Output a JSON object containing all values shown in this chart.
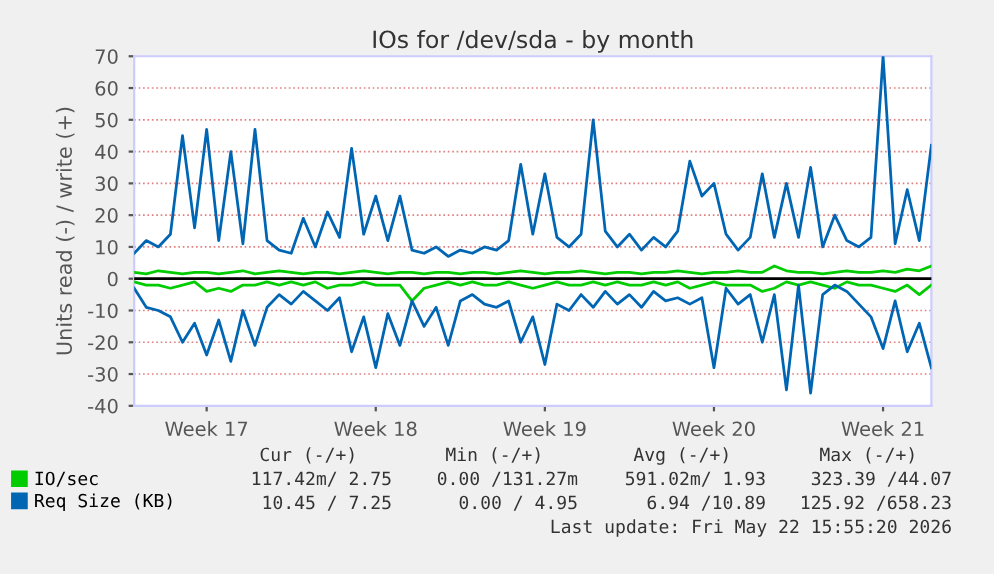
{
  "chart_data": {
    "type": "line",
    "title": "IOs for /dev/sda - by month",
    "ylabel": "Units read (-) / write (+)",
    "categories": [
      null,
      null,
      null,
      null,
      null,
      null,
      "Week 17",
      null,
      null,
      null,
      null,
      null,
      null,
      null,
      null,
      null,
      null,
      null,
      null,
      null,
      "Week 18",
      null,
      null,
      null,
      null,
      null,
      null,
      null,
      null,
      null,
      null,
      null,
      null,
      null,
      "Week 19",
      null,
      null,
      null,
      null,
      null,
      null,
      null,
      null,
      null,
      null,
      null,
      null,
      null,
      "Week 20",
      null,
      null,
      null,
      null,
      null,
      null,
      null,
      null,
      null,
      null,
      null,
      null,
      null,
      "Week 21",
      null,
      null,
      null,
      null
    ],
    "ylim": [
      -40,
      70
    ],
    "yticks": [
      -40,
      -30,
      -20,
      -10,
      0,
      10,
      20,
      30,
      40,
      50,
      60,
      70
    ],
    "grid": "y",
    "legend": "bottom",
    "line_style": "solid",
    "ref_lines": [
      {
        "axis": "y",
        "value": 0,
        "color": "#000000"
      }
    ],
    "series": [
      {
        "color": "#00cc00",
        "values": [
          -1,
          -2,
          -2,
          -3,
          -2,
          -1,
          -4,
          -3,
          -4,
          -2,
          -2,
          -1,
          -2,
          -1,
          -2,
          -1,
          -3,
          -2,
          -2,
          -1,
          -2,
          -2,
          -2,
          -7,
          -3,
          -2,
          -1,
          -2,
          -1,
          -2,
          -2,
          -1,
          -2,
          -3,
          -2,
          -1,
          -2,
          -2,
          -1,
          -2,
          -1,
          -2,
          -2,
          -1,
          -2,
          -1,
          -3,
          -2,
          -1,
          -2,
          -2,
          -2,
          -4,
          -3,
          -1,
          -2,
          -1,
          -2,
          -3,
          -1,
          -2,
          -2,
          -3,
          -4,
          -2,
          -5,
          -2
        ]
      },
      {
        "color": "#0066b3",
        "values": [
          -3,
          -9,
          -10,
          -12,
          -20,
          -14,
          -24,
          -13,
          -26,
          -10,
          -21,
          -9,
          -5,
          -8,
          -4,
          -7,
          -10,
          -6,
          -23,
          -12,
          -28,
          -11,
          -21,
          -7,
          -15,
          -9,
          -21,
          -7,
          -5,
          -8,
          -9,
          -7,
          -20,
          -12,
          -27,
          -8,
          -10,
          -5,
          -9,
          -4,
          -8,
          -5,
          -9,
          -4,
          -7,
          -6,
          -8,
          -6,
          -28,
          -3,
          -8,
          -5,
          -20,
          -5,
          -35,
          -2,
          -36,
          -5,
          -2,
          -4,
          -8,
          -12,
          -22,
          -7,
          -23,
          -14,
          -28
        ]
      },
      {
        "name": "IO/sec",
        "color": "#00cc00",
        "values": [
          2,
          1.5,
          2.5,
          2,
          1.5,
          2,
          2,
          1.5,
          2,
          2.5,
          1.5,
          2,
          2.5,
          2,
          1.5,
          2,
          2,
          1.5,
          2,
          2.5,
          2,
          1.5,
          2,
          2,
          1.5,
          2,
          2,
          1.5,
          2,
          2,
          1.5,
          2,
          2.5,
          2,
          1.5,
          2,
          2,
          2.5,
          2,
          1.5,
          2,
          2,
          1.5,
          2,
          2,
          2.5,
          2,
          1.5,
          2,
          2,
          2.5,
          2,
          2,
          4,
          2.5,
          2,
          2,
          1.5,
          2,
          2.5,
          2,
          2,
          2.5,
          2,
          3,
          2.5,
          4
        ]
      },
      {
        "name": "Req Size (KB)",
        "color": "#0066b3",
        "values": [
          8,
          12,
          10,
          14,
          45,
          16,
          47,
          12,
          40,
          11,
          47,
          12,
          9,
          8,
          19,
          10,
          21,
          13,
          41,
          14,
          26,
          12,
          26,
          9,
          8,
          10,
          7,
          9,
          8,
          10,
          9,
          12,
          36,
          14,
          33,
          13,
          10,
          14,
          50,
          15,
          10,
          14,
          9,
          13,
          10,
          15,
          37,
          26,
          30,
          14,
          9,
          13,
          33,
          13,
          30,
          13,
          35,
          10,
          20,
          12,
          10,
          13,
          70,
          11,
          28,
          12,
          42
        ]
      }
    ],
    "annotations": [
      "Cur (-/+)",
      "Min (-/+)",
      "Avg (-/+)",
      "Max (-/+)",
      "117.42m/ 2.75",
      "0.00 /131.27m",
      "591.02m/ 1.93",
      "323.39 /44.07",
      "10.45 / 7.25",
      "0.00 / 4.95",
      "6.94 /10.89",
      "125.92 /658.23",
      "Last update: Fri May 22 15:55:20 2026"
    ]
  }
}
